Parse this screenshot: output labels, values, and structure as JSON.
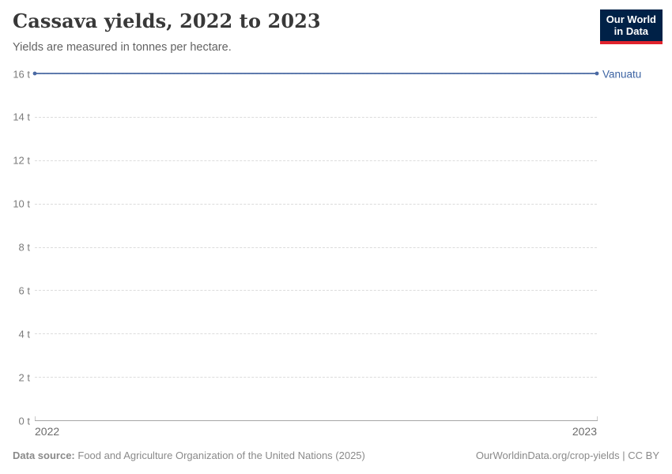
{
  "header": {
    "title": "Cassava yields, 2022 to 2023",
    "subtitle": "Yields are measured in tonnes per hectare.",
    "logo": {
      "line1": "Our World",
      "line2": "in Data",
      "bg_color": "#002147",
      "accent_color": "#e0232d"
    }
  },
  "chart_data": {
    "type": "line",
    "title": "Cassava yields, 2022 to 2023",
    "subtitle": "Yields are measured in tonnes per hectare.",
    "x": [
      2022,
      2023
    ],
    "xtick_labels": [
      "2022",
      "2023"
    ],
    "series": [
      {
        "name": "Vanuatu",
        "values": [
          16,
          16
        ],
        "color": "#4a69a3",
        "label_color": "#3d64a3"
      }
    ],
    "ylim": [
      0,
      16
    ],
    "yticks": [
      0,
      2,
      4,
      6,
      8,
      10,
      12,
      14,
      16
    ],
    "ytick_labels": [
      "0 t",
      "2 t",
      "4 t",
      "6 t",
      "8 t",
      "10 t",
      "12 t",
      "14 t",
      "16 t"
    ],
    "unit": "tonnes per hectare",
    "grid": {
      "style": "dashed",
      "color": "#dcdcdc",
      "orientation": "horizontal"
    },
    "axis_color": "#a6a6a6",
    "legend_position": "end-of-line"
  },
  "footer": {
    "source_label": "Data source:",
    "source_text": "Food and Agriculture Organization of the United Nations (2025)",
    "credit": "OurWorldinData.org/crop-yields | CC BY"
  }
}
